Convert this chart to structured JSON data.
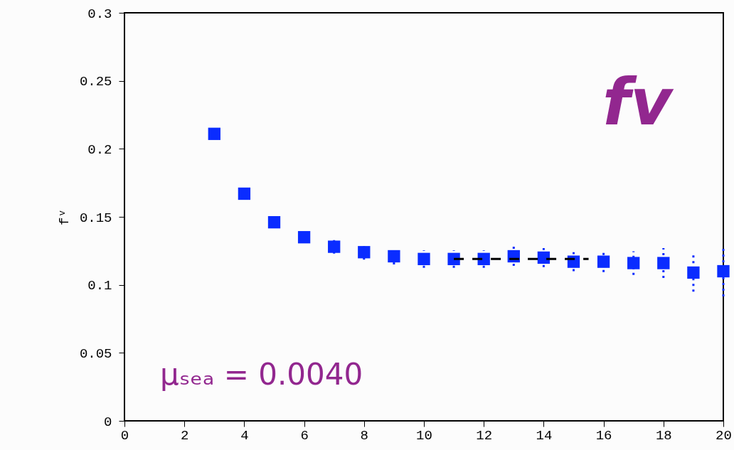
{
  "chart_data": {
    "type": "scatter",
    "ylabel": "fᵛ",
    "annotations": [
      "fv",
      "μₛₑₐ = 0.0040"
    ],
    "xlim": [
      0,
      20
    ],
    "xticks": [
      0,
      2,
      4,
      6,
      8,
      10,
      12,
      14,
      16,
      18,
      20
    ],
    "ylim": [
      0,
      0.3
    ],
    "yticks": [
      0,
      0.05,
      0.1,
      0.15,
      0.2,
      0.25,
      0.3
    ],
    "grid": false,
    "series": [
      {
        "marker": "square",
        "color": "#0a2cff",
        "x": [
          3,
          4,
          5,
          6,
          7,
          8,
          9,
          10,
          11,
          12,
          13,
          14,
          15,
          16,
          17,
          18,
          19,
          20
        ],
        "values": [
          0.211,
          0.167,
          0.146,
          0.135,
          0.128,
          0.124,
          0.121,
          0.119,
          0.119,
          0.119,
          0.121,
          0.12,
          0.117,
          0.117,
          0.116,
          0.116,
          0.109,
          0.11
        ],
        "errors": [
          null,
          null,
          null,
          null,
          0.005,
          0.0055,
          0.006,
          0.0065,
          0.0065,
          0.0065,
          0.007,
          0.007,
          0.007,
          0.0077,
          0.0087,
          0.011,
          0.014,
          0.0185
        ]
      },
      {
        "type": "line",
        "color": "#000000",
        "line_style": "dashed",
        "x": [
          11,
          15.5
        ],
        "values": [
          0.119,
          0.119
        ]
      }
    ]
  }
}
